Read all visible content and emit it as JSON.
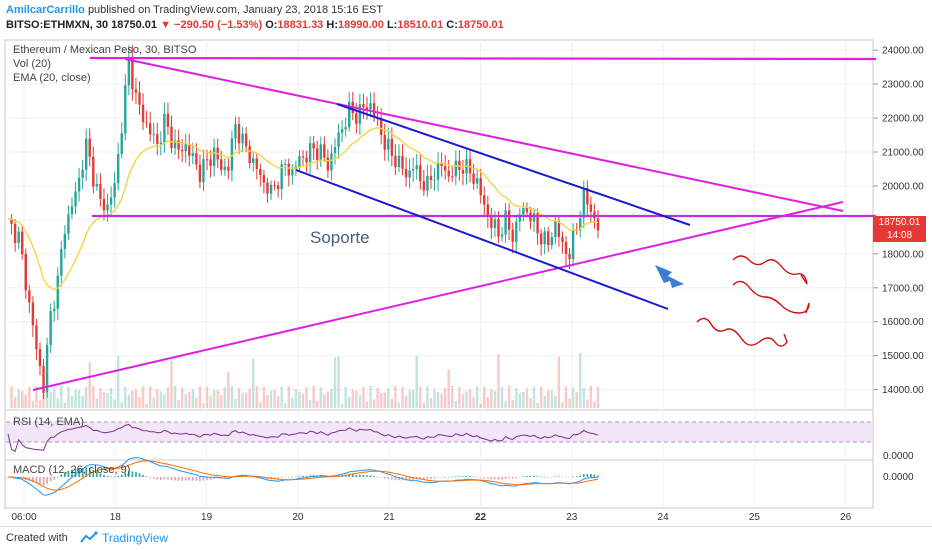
{
  "header": {
    "author": "AmilcarCarrillo",
    "published_text": "published on TradingView.com, January 23, 2018 15:16 EST",
    "symbol": "BITSO:ETHMXN, 30",
    "last": "18750.01",
    "change": "−290.50 (−1.53%)",
    "open_label": "O:",
    "open": "18831.33",
    "high_label": "H:",
    "high": "18990.00",
    "low_label": "L:",
    "low": "18510.01",
    "close_label": "C:",
    "close": "18750.01"
  },
  "legend": {
    "title": "Ethereum / Mexican Peso, 30, BITSO",
    "vol": "Vol (20)",
    "ema": "EMA (20, close)",
    "rsi": "RSI (14, EMA)",
    "macd": "MACD (12, 26, close, 9)"
  },
  "annotation": {
    "soporte": "Soporte"
  },
  "price_badge": {
    "price": "18750.01",
    "time": "14:08"
  },
  "footer": {
    "created": "Created with",
    "brand": "TradingView"
  },
  "colors": {
    "up": "#26a69a",
    "down": "#e53935",
    "ema": "#f5d442",
    "magenta": "#e020e0",
    "channel": "#1a1ad0",
    "rsi": "#7b2d8e",
    "macd": "#2196f3",
    "signal": "#ff6d00"
  },
  "chart_data": {
    "type": "candlestick",
    "y_ticks": [
      "24000.00",
      "23000.00",
      "22000.00",
      "21000.00",
      "20000.00",
      "19000.00",
      "18000.00",
      "17000.00",
      "16000.00",
      "15000.00",
      "14000.00"
    ],
    "x_ticks": [
      "06:00",
      "18",
      "19",
      "20",
      "21",
      "22",
      "23",
      "24",
      "25",
      "26"
    ],
    "rsi_ticks": [
      "0.0000"
    ],
    "macd_ticks": [
      "0.0000"
    ],
    "y_range": [
      13400,
      24300
    ],
    "close_path": [
      [
        0,
        18900
      ],
      [
        3,
        18500
      ],
      [
        6,
        16500
      ],
      [
        8,
        15200
      ],
      [
        10,
        14100
      ],
      [
        12,
        16200
      ],
      [
        14,
        17200
      ],
      [
        16,
        18800
      ],
      [
        18,
        19400
      ],
      [
        20,
        20200
      ],
      [
        22,
        21200
      ],
      [
        24,
        20300
      ],
      [
        26,
        19500
      ],
      [
        28,
        19400
      ],
      [
        30,
        20000
      ],
      [
        32,
        21800
      ],
      [
        34,
        23700
      ],
      [
        36,
        22600
      ],
      [
        38,
        22000
      ],
      [
        40,
        21600
      ],
      [
        42,
        21200
      ],
      [
        44,
        21900
      ],
      [
        46,
        21400
      ],
      [
        48,
        21000
      ],
      [
        50,
        21200
      ],
      [
        52,
        20800
      ],
      [
        54,
        20400
      ],
      [
        56,
        20700
      ],
      [
        58,
        21000
      ],
      [
        60,
        20500
      ],
      [
        62,
        20600
      ],
      [
        64,
        21800
      ],
      [
        66,
        21300
      ],
      [
        68,
        20900
      ],
      [
        70,
        20500
      ],
      [
        72,
        20100
      ],
      [
        74,
        19800
      ],
      [
        76,
        20200
      ],
      [
        78,
        20600
      ],
      [
        80,
        20400
      ],
      [
        82,
        20800
      ],
      [
        84,
        20900
      ],
      [
        86,
        21100
      ],
      [
        88,
        21000
      ],
      [
        90,
        20600
      ],
      [
        92,
        21200
      ],
      [
        94,
        21700
      ],
      [
        96,
        22200
      ],
      [
        98,
        22100
      ],
      [
        100,
        22300
      ],
      [
        102,
        22400
      ],
      [
        104,
        21800
      ],
      [
        106,
        21300
      ],
      [
        108,
        20900
      ],
      [
        110,
        20700
      ],
      [
        112,
        20300
      ],
      [
        114,
        20600
      ],
      [
        116,
        20200
      ],
      [
        118,
        20000
      ],
      [
        120,
        20400
      ],
      [
        122,
        20600
      ],
      [
        124,
        20300
      ],
      [
        126,
        20500
      ],
      [
        128,
        20600
      ],
      [
        130,
        20400
      ],
      [
        132,
        20100
      ],
      [
        134,
        19400
      ],
      [
        136,
        18900
      ],
      [
        138,
        18600
      ],
      [
        140,
        19000
      ],
      [
        142,
        18500
      ],
      [
        144,
        19200
      ],
      [
        146,
        19300
      ],
      [
        148,
        18900
      ],
      [
        150,
        18500
      ],
      [
        152,
        18300
      ],
      [
        154,
        18900
      ],
      [
        156,
        18200
      ],
      [
        158,
        18000
      ],
      [
        160,
        18800
      ],
      [
        162,
        19700
      ],
      [
        164,
        19300
      ],
      [
        166,
        18750
      ]
    ]
  }
}
